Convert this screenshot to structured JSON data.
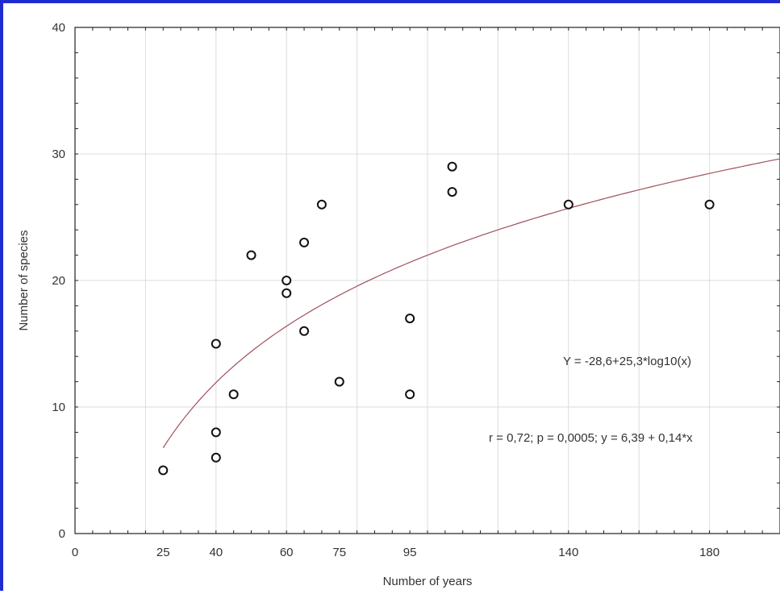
{
  "chart_data": {
    "type": "scatter",
    "title": "",
    "xlabel": "Number of years",
    "ylabel": "Number of species",
    "xlim": [
      0,
      200
    ],
    "ylim": [
      0,
      40
    ],
    "x_ticks": [
      0,
      25,
      40,
      60,
      75,
      95,
      140,
      180
    ],
    "x_gridlines": [
      0,
      20,
      40,
      60,
      80,
      100,
      120,
      140,
      160,
      180
    ],
    "y_ticks": [
      0,
      10,
      20,
      30,
      40
    ],
    "grid": true,
    "points": [
      {
        "x": 25,
        "y": 5
      },
      {
        "x": 40,
        "y": 15
      },
      {
        "x": 40,
        "y": 8
      },
      {
        "x": 40,
        "y": 6
      },
      {
        "x": 45,
        "y": 11
      },
      {
        "x": 50,
        "y": 22
      },
      {
        "x": 60,
        "y": 20
      },
      {
        "x": 60,
        "y": 19
      },
      {
        "x": 65,
        "y": 23
      },
      {
        "x": 65,
        "y": 16
      },
      {
        "x": 70,
        "y": 26
      },
      {
        "x": 75,
        "y": 12
      },
      {
        "x": 95,
        "y": 17
      },
      {
        "x": 95,
        "y": 11
      },
      {
        "x": 107,
        "y": 29
      },
      {
        "x": 107,
        "y": 27
      },
      {
        "x": 140,
        "y": 26
      },
      {
        "x": 180,
        "y": 26
      }
    ],
    "fit": {
      "name": "Y = -28,6+25,3*log10(x)",
      "intercept": -28.6,
      "slope": 25.3,
      "function": "log10",
      "x_start": 25,
      "x_end": 200,
      "color": "#a0505a"
    },
    "annotations": [
      "Y = -28,6+25,3*log10(x)",
      "r = 0,72; p = 0,0005;  y = 6,39 + 0,14*x"
    ],
    "colors": {
      "frame": "#1f2bd1",
      "grid": "#dcdcdc",
      "axis": "#222222",
      "marker": "#111111"
    }
  }
}
